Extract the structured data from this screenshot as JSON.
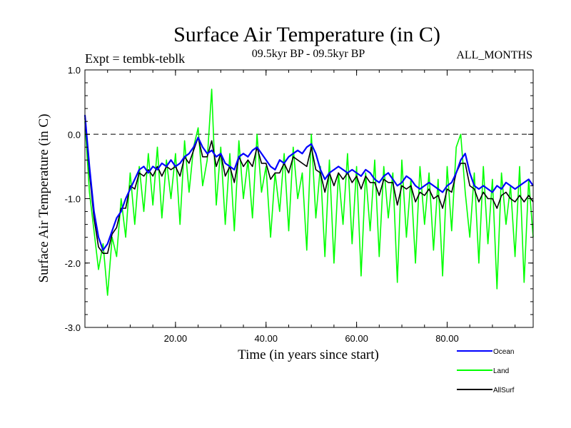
{
  "page": {
    "title": "Surface Air Temperature (in C)",
    "expt_label": "Expt = tembk-teblk",
    "period_label": "09.5kyr BP - 09.5kyr BP",
    "months_label": "ALL_MONTHS"
  },
  "chart_data": {
    "type": "line",
    "title": "Surface Air Temperature (in C)",
    "xlabel": "Time (in years since start)",
    "ylabel": "Surface Air Temperature (in C)",
    "xlim": [
      0,
      99
    ],
    "ylim": [
      -3.0,
      1.0
    ],
    "x_ticks": [
      20,
      40,
      60,
      80
    ],
    "x_tick_labels": [
      "20.00",
      "40.00",
      "60.00",
      "80.00"
    ],
    "y_ticks": [
      1.0,
      0.0,
      -1.0,
      -2.0,
      -3.0
    ],
    "y_tick_labels": [
      "1.0",
      "0.0",
      "-1.0",
      "-2.0",
      "-3.0"
    ],
    "reference_line": {
      "y": 0.0,
      "style": "dashed"
    },
    "legend_position": "bottom-right",
    "series": [
      {
        "name": "Ocean",
        "color": "#0000ff",
        "x": [
          0,
          1,
          2,
          3,
          4,
          5,
          6,
          7,
          8,
          9,
          10,
          11,
          12,
          13,
          14,
          15,
          16,
          17,
          18,
          19,
          20,
          21,
          22,
          23,
          24,
          25,
          26,
          27,
          28,
          29,
          30,
          31,
          32,
          33,
          34,
          35,
          36,
          37,
          38,
          39,
          40,
          41,
          42,
          43,
          44,
          45,
          46,
          47,
          48,
          49,
          50,
          51,
          52,
          53,
          54,
          55,
          56,
          57,
          58,
          59,
          60,
          61,
          62,
          63,
          64,
          65,
          66,
          67,
          68,
          69,
          70,
          71,
          72,
          73,
          74,
          75,
          76,
          77,
          78,
          79,
          80,
          81,
          82,
          83,
          84,
          85,
          86,
          87,
          88,
          89,
          90,
          91,
          92,
          93,
          94,
          95,
          96,
          97,
          98,
          99
        ],
        "values": [
          0.3,
          -0.5,
          -1.2,
          -1.6,
          -1.8,
          -1.7,
          -1.5,
          -1.3,
          -1.2,
          -1.0,
          -0.85,
          -0.7,
          -0.55,
          -0.5,
          -0.6,
          -0.5,
          -0.55,
          -0.45,
          -0.5,
          -0.4,
          -0.5,
          -0.45,
          -0.35,
          -0.3,
          -0.2,
          -0.05,
          -0.2,
          -0.3,
          -0.25,
          -0.35,
          -0.3,
          -0.45,
          -0.5,
          -0.55,
          -0.35,
          -0.3,
          -0.35,
          -0.25,
          -0.2,
          -0.3,
          -0.4,
          -0.5,
          -0.55,
          -0.4,
          -0.45,
          -0.35,
          -0.3,
          -0.25,
          -0.3,
          -0.2,
          -0.15,
          -0.3,
          -0.55,
          -0.7,
          -0.6,
          -0.55,
          -0.5,
          -0.55,
          -0.6,
          -0.55,
          -0.6,
          -0.65,
          -0.55,
          -0.6,
          -0.7,
          -0.75,
          -0.65,
          -0.6,
          -0.7,
          -0.8,
          -0.75,
          -0.65,
          -0.7,
          -0.8,
          -0.85,
          -0.8,
          -0.75,
          -0.8,
          -0.85,
          -0.9,
          -0.8,
          -0.75,
          -0.6,
          -0.4,
          -0.3,
          -0.6,
          -0.8,
          -0.85,
          -0.8,
          -0.85,
          -0.9,
          -0.8,
          -0.85,
          -0.75,
          -0.8,
          -0.85,
          -0.8,
          -0.75,
          -0.7,
          -0.8
        ]
      },
      {
        "name": "Land",
        "color": "#00ff00",
        "x": [
          0,
          1,
          2,
          3,
          4,
          5,
          6,
          7,
          8,
          9,
          10,
          11,
          12,
          13,
          14,
          15,
          16,
          17,
          18,
          19,
          20,
          21,
          22,
          23,
          24,
          25,
          26,
          27,
          28,
          29,
          30,
          31,
          32,
          33,
          34,
          35,
          36,
          37,
          38,
          39,
          40,
          41,
          42,
          43,
          44,
          45,
          46,
          47,
          48,
          49,
          50,
          51,
          52,
          53,
          54,
          55,
          56,
          57,
          58,
          59,
          60,
          61,
          62,
          63,
          64,
          65,
          66,
          67,
          68,
          69,
          70,
          71,
          72,
          73,
          74,
          75,
          76,
          77,
          78,
          79,
          80,
          81,
          82,
          83,
          84,
          85,
          86,
          87,
          88,
          89,
          90,
          91,
          92,
          93,
          94,
          95,
          96,
          97,
          98,
          99
        ],
        "values": [
          0.2,
          -0.9,
          -1.5,
          -2.1,
          -1.7,
          -2.5,
          -1.6,
          -1.9,
          -1.0,
          -1.6,
          -0.6,
          -1.4,
          -0.5,
          -1.2,
          -0.3,
          -1.1,
          -0.2,
          -1.3,
          -0.4,
          -1.0,
          -0.3,
          -1.4,
          -0.1,
          -0.9,
          -0.2,
          0.1,
          -0.8,
          -0.4,
          0.7,
          -1.1,
          -0.2,
          -1.4,
          -0.3,
          -1.5,
          -0.1,
          -1.0,
          -0.4,
          -1.3,
          0.0,
          -0.9,
          -0.5,
          -1.6,
          -0.6,
          -1.2,
          -0.3,
          -1.5,
          -0.2,
          -1.0,
          -0.6,
          -1.8,
          0.0,
          -1.3,
          -0.5,
          -1.9,
          -0.4,
          -2.0,
          -0.6,
          -1.4,
          -0.3,
          -1.7,
          -0.5,
          -2.2,
          -0.6,
          -1.5,
          -0.4,
          -1.9,
          -0.5,
          -1.3,
          -0.6,
          -2.3,
          -0.4,
          -1.6,
          -0.7,
          -2.0,
          -0.5,
          -1.4,
          -0.6,
          -1.8,
          -0.7,
          -2.2,
          -0.5,
          -1.5,
          -0.2,
          0.0,
          -0.9,
          -1.6,
          -0.6,
          -2.0,
          -0.5,
          -1.7,
          -0.7,
          -2.4,
          -0.6,
          -1.4,
          -0.8,
          -1.9,
          -0.5,
          -2.3,
          -0.7,
          -1.6
        ]
      },
      {
        "name": "AllSurf",
        "color": "#000000",
        "x": [
          0,
          1,
          2,
          3,
          4,
          5,
          6,
          7,
          8,
          9,
          10,
          11,
          12,
          13,
          14,
          15,
          16,
          17,
          18,
          19,
          20,
          21,
          22,
          23,
          24,
          25,
          26,
          27,
          28,
          29,
          30,
          31,
          32,
          33,
          34,
          35,
          36,
          37,
          38,
          39,
          40,
          41,
          42,
          43,
          44,
          45,
          46,
          47,
          48,
          49,
          50,
          51,
          52,
          53,
          54,
          55,
          56,
          57,
          58,
          59,
          60,
          61,
          62,
          63,
          64,
          65,
          66,
          67,
          68,
          69,
          70,
          71,
          72,
          73,
          74,
          75,
          76,
          77,
          78,
          79,
          80,
          81,
          82,
          83,
          84,
          85,
          86,
          87,
          88,
          89,
          90,
          91,
          92,
          93,
          94,
          95,
          96,
          97,
          98,
          99
        ],
        "values": [
          0.25,
          -0.6,
          -1.3,
          -1.75,
          -1.85,
          -1.85,
          -1.55,
          -1.45,
          -1.15,
          -1.15,
          -0.8,
          -0.85,
          -0.6,
          -0.65,
          -0.55,
          -0.65,
          -0.5,
          -0.65,
          -0.5,
          -0.55,
          -0.5,
          -0.65,
          -0.35,
          -0.45,
          -0.25,
          -0.05,
          -0.35,
          -0.35,
          -0.1,
          -0.5,
          -0.3,
          -0.65,
          -0.5,
          -0.75,
          -0.35,
          -0.5,
          -0.4,
          -0.5,
          -0.2,
          -0.45,
          -0.45,
          -0.7,
          -0.6,
          -0.6,
          -0.45,
          -0.6,
          -0.35,
          -0.4,
          -0.45,
          -0.5,
          -0.2,
          -0.55,
          -0.6,
          -0.9,
          -0.6,
          -0.8,
          -0.6,
          -0.7,
          -0.6,
          -0.75,
          -0.65,
          -0.85,
          -0.65,
          -0.75,
          -0.75,
          -0.95,
          -0.7,
          -0.75,
          -0.75,
          -1.1,
          -0.8,
          -0.85,
          -0.8,
          -1.05,
          -0.9,
          -0.95,
          -0.85,
          -1.0,
          -0.95,
          -1.15,
          -0.85,
          -0.9,
          -0.6,
          -0.45,
          -0.45,
          -0.8,
          -0.85,
          -1.05,
          -0.9,
          -1.0,
          -1.0,
          -1.15,
          -0.95,
          -0.9,
          -1.0,
          -1.05,
          -0.95,
          -1.05,
          -0.95,
          -1.05
        ]
      }
    ]
  }
}
